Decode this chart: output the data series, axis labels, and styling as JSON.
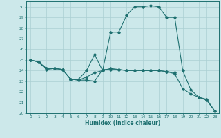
{
  "xlabel": "Humidex (Indice chaleur)",
  "bg_color": "#cce8ea",
  "grid_color": "#aacfd2",
  "line_color": "#1e7070",
  "xlim": [
    -0.5,
    23.5
  ],
  "ylim": [
    20,
    30.5
  ],
  "xticks": [
    0,
    1,
    2,
    3,
    4,
    5,
    6,
    7,
    8,
    9,
    10,
    11,
    12,
    13,
    14,
    15,
    16,
    17,
    18,
    19,
    20,
    21,
    22,
    23
  ],
  "yticks": [
    20,
    21,
    22,
    23,
    24,
    25,
    26,
    27,
    28,
    29,
    30
  ],
  "line1_x": [
    0,
    1,
    2,
    3,
    4,
    5,
    6,
    7,
    8,
    9,
    10,
    11,
    12,
    13,
    14,
    15,
    16,
    17,
    18
  ],
  "line1_y": [
    25,
    24.8,
    24.2,
    24.2,
    24.1,
    23.2,
    23.1,
    23.1,
    23.0,
    24.1,
    24.1,
    24.1,
    24.0,
    24.0,
    24.0,
    24.0,
    24.0,
    23.9,
    23.8
  ],
  "line2_x": [
    0,
    1,
    2,
    3,
    4,
    5,
    6,
    7,
    8,
    9,
    10,
    11,
    12,
    13,
    14,
    15,
    16,
    17,
    18,
    19,
    20,
    21,
    22,
    23
  ],
  "line2_y": [
    25,
    24.8,
    24.1,
    24.2,
    24.1,
    23.2,
    23.2,
    24.0,
    25.5,
    24.0,
    27.6,
    27.6,
    29.2,
    30.0,
    30.0,
    30.1,
    30.0,
    29.0,
    29.0,
    24.0,
    22.2,
    21.5,
    21.3,
    20.2
  ],
  "line3_x": [
    0,
    1,
    2,
    3,
    4,
    5,
    6,
    7,
    8,
    9,
    10,
    11,
    12,
    13,
    14,
    15,
    16,
    17,
    18,
    19,
    20,
    21,
    22,
    23
  ],
  "line3_y": [
    25,
    24.8,
    24.2,
    24.2,
    24.1,
    23.2,
    23.1,
    23.4,
    23.8,
    24.0,
    24.2,
    24.1,
    24.0,
    24.0,
    24.0,
    24.0,
    24.0,
    23.9,
    23.7,
    22.3,
    21.8,
    21.5,
    21.2,
    20.2
  ]
}
